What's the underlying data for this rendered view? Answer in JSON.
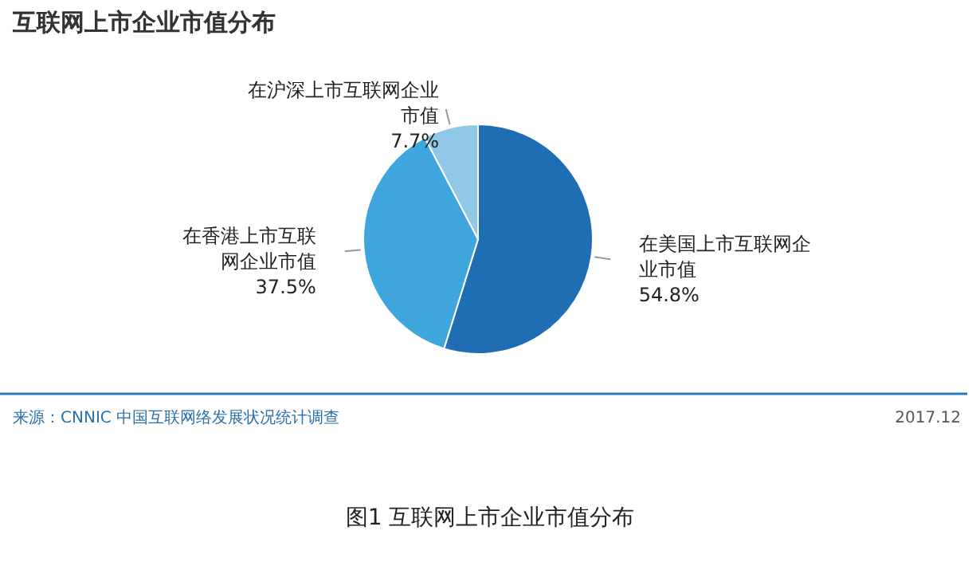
{
  "chart_data": {
    "type": "pie",
    "title": "互联网上市企业市值分布",
    "categories": [
      "在美国上市互联网企业市值",
      "在香港上市互联网企业市值",
      "在沪深上市互联网企业市值"
    ],
    "values": [
      54.8,
      37.5,
      7.7
    ],
    "colors": [
      "#1f6db3",
      "#3ea6dc",
      "#8fc9e7"
    ],
    "value_labels": [
      "54.8%",
      "37.5%",
      "7.7%"
    ],
    "annotations": [
      "来源：CNNIC  中国互联网络发展状况统计调查",
      "2017.12",
      "图1 互联网上市企业市值分布"
    ]
  }
}
